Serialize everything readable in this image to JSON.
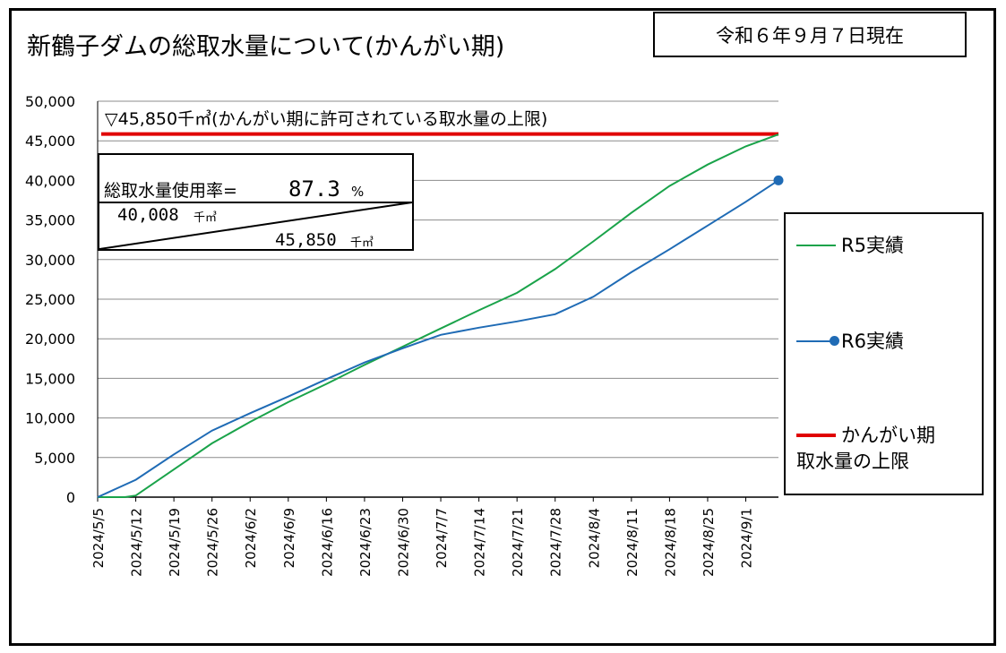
{
  "title": "新鶴子ダムの総取水量について(かんがい期)",
  "as_of": "令和６年９月７日現在",
  "limit_annotation": "▽45,850千㎥(かんがい期に許可されている取水量の上限)",
  "usage_box": {
    "label": "総取水量使用率=",
    "rate": "87.3",
    "rate_unit": "%",
    "numerator": "40,008",
    "denominator": "45,850",
    "unit": "千㎥"
  },
  "legend": {
    "r5": "R5実績",
    "r6": "R6実績",
    "limit_line1": "かんがい期",
    "limit_line2": "取水量の上限"
  },
  "colors": {
    "r5": "#1aa34a",
    "r6": "#1f6bb5",
    "limit": "#e00000",
    "grid": "#8c8c8c"
  },
  "chart_data": {
    "type": "line",
    "title": "新鶴子ダムの総取水量について(かんがい期)",
    "xlabel": "",
    "ylabel": "",
    "ylim": [
      0,
      50000
    ],
    "yticks": [
      "0",
      "5,000",
      "10,000",
      "15,000",
      "20,000",
      "25,000",
      "30,000",
      "35,000",
      "40,000",
      "45,000",
      "50,000"
    ],
    "xticks": [
      "2024/5/5",
      "2024/5/12",
      "2024/5/19",
      "2024/5/26",
      "2024/6/2",
      "2024/6/9",
      "2024/6/16",
      "2024/6/23",
      "2024/6/30",
      "2024/7/7",
      "2024/7/14",
      "2024/7/21",
      "2024/7/28",
      "2024/8/4",
      "2024/8/11",
      "2024/8/18",
      "2024/8/25",
      "2024/9/1"
    ],
    "x_range": [
      "2024/5/5",
      "2024/9/7"
    ],
    "grid": true,
    "limit_value": 45850,
    "series": [
      {
        "name": "R5実績",
        "x": [
          "2024/5/5",
          "2024/5/10",
          "2024/5/12",
          "2024/5/19",
          "2024/5/26",
          "2024/6/2",
          "2024/6/9",
          "2024/6/16",
          "2024/6/23",
          "2024/6/30",
          "2024/7/7",
          "2024/7/14",
          "2024/7/21",
          "2024/7/28",
          "2024/8/4",
          "2024/8/11",
          "2024/8/18",
          "2024/8/25",
          "2024/9/1",
          "2024/9/7"
        ],
        "values": [
          0,
          0,
          200,
          3500,
          6800,
          9500,
          12000,
          14300,
          16700,
          19000,
          21300,
          23600,
          25800,
          28800,
          32300,
          35900,
          39300,
          42000,
          44300,
          45800
        ]
      },
      {
        "name": "R6実績",
        "x": [
          "2024/5/5",
          "2024/5/12",
          "2024/5/19",
          "2024/5/26",
          "2024/6/2",
          "2024/6/9",
          "2024/6/16",
          "2024/6/23",
          "2024/6/30",
          "2024/7/7",
          "2024/7/14",
          "2024/7/21",
          "2024/7/28",
          "2024/8/4",
          "2024/8/11",
          "2024/8/18",
          "2024/8/25",
          "2024/9/1",
          "2024/9/7"
        ],
        "values": [
          0,
          2200,
          5400,
          8400,
          10600,
          12700,
          14900,
          17000,
          18800,
          20500,
          21400,
          22200,
          23100,
          25300,
          28400,
          31300,
          34300,
          37300,
          40008
        ]
      }
    ]
  }
}
